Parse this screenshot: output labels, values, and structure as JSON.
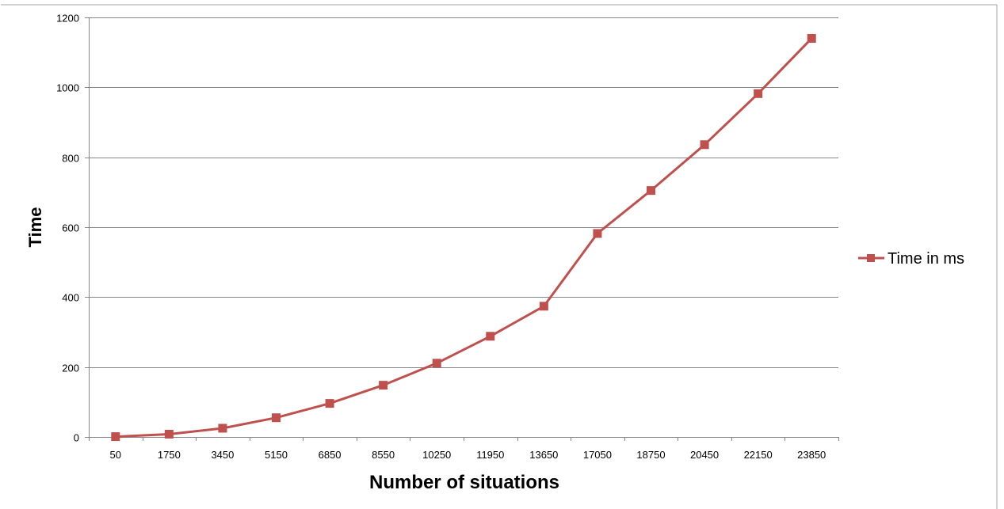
{
  "chart_data": {
    "type": "line",
    "categories": [
      "50",
      "1750",
      "3450",
      "5150",
      "6850",
      "8550",
      "10250",
      "11950",
      "13650",
      "17050",
      "18750",
      "20450",
      "22150",
      "23850"
    ],
    "series": [
      {
        "name": "Time in ms",
        "values": [
          1,
          8,
          25,
          55,
          96,
          148,
          211,
          288,
          374,
          582,
          705,
          836,
          982,
          1140
        ],
        "color": "#c0504d",
        "marker": "square"
      }
    ],
    "xlabel": "Number of situations",
    "ylabel": "Time",
    "ylim": [
      0,
      1200
    ],
    "yticks": [
      0,
      200,
      400,
      600,
      800,
      1000,
      1200
    ],
    "grid": "horizontal",
    "legend_position": "right"
  },
  "colors": {
    "series": "#c0504d",
    "grid": "#868686",
    "axis": "#868686"
  }
}
